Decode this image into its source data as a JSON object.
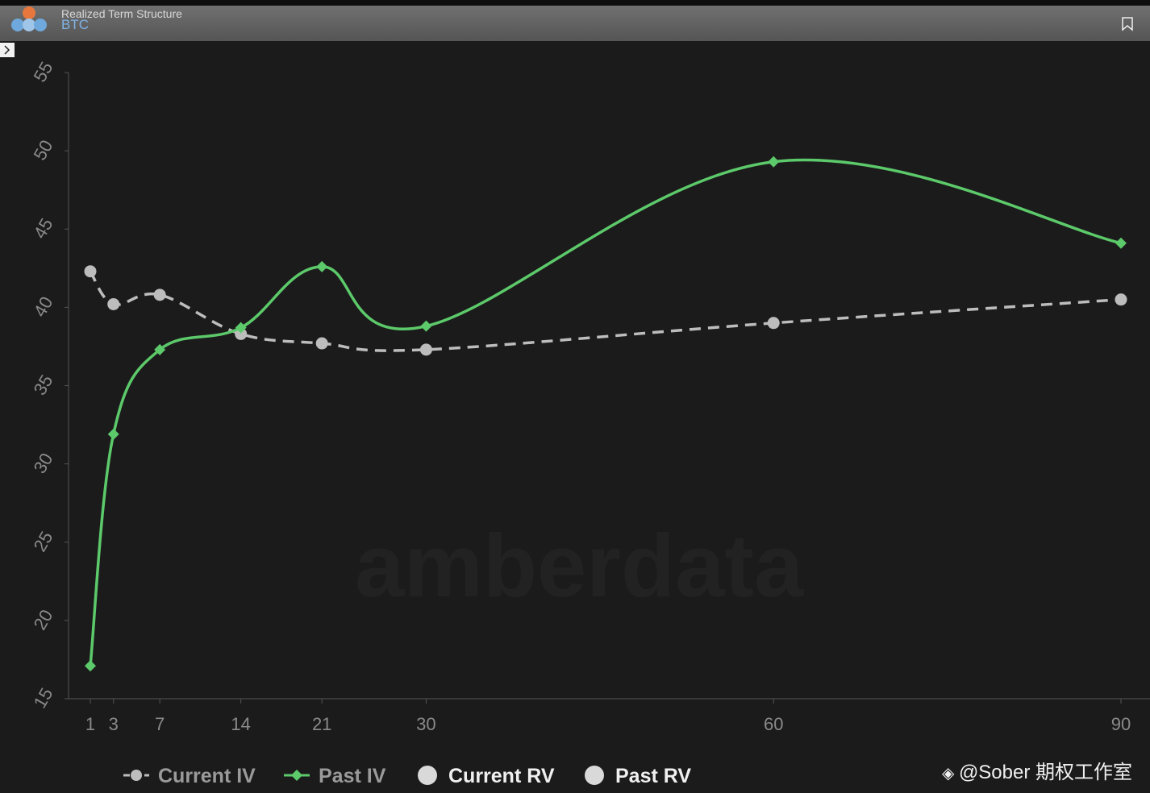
{
  "header": {
    "title": "Realized Term Structure",
    "subtitle": "BTC"
  },
  "chart_data": {
    "type": "line",
    "x": [
      1,
      3,
      7,
      14,
      21,
      30,
      60,
      90
    ],
    "xlim": [
      1,
      90
    ],
    "xticks": [
      1,
      3,
      7,
      14,
      21,
      30,
      60,
      90
    ],
    "ylim": [
      15,
      55
    ],
    "yticks": [
      15,
      20,
      25,
      30,
      35,
      40,
      45,
      50,
      55
    ],
    "series": [
      {
        "name": "Current IV",
        "color": "#bdbdbd",
        "dashed": true,
        "marker": "circle",
        "values": [
          42.3,
          40.2,
          40.8,
          38.3,
          37.7,
          37.3,
          39.0,
          40.5
        ]
      },
      {
        "name": "Past IV",
        "color": "#5cc96a",
        "dashed": false,
        "marker": "diamond",
        "values": [
          17.1,
          31.9,
          37.3,
          38.7,
          42.6,
          38.8,
          49.3,
          44.1
        ]
      },
      {
        "name": "Current RV",
        "color": "#d9d9d9",
        "dashed": false,
        "marker": "dot",
        "values": [
          null,
          null,
          null,
          null,
          null,
          null,
          null,
          null
        ]
      },
      {
        "name": "Past RV",
        "color": "#d9d9d9",
        "dashed": false,
        "marker": "dot",
        "values": [
          null,
          null,
          null,
          null,
          null,
          null,
          null,
          null
        ]
      }
    ],
    "watermark": "amberdata"
  },
  "footer": {
    "credit": "@Sober 期权工作室"
  }
}
